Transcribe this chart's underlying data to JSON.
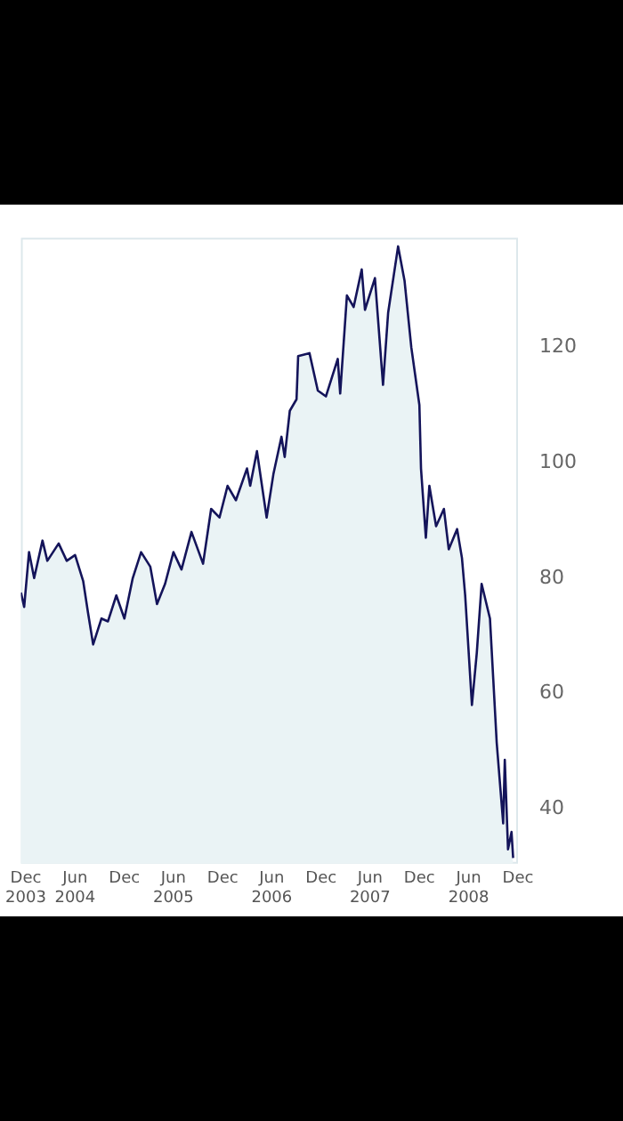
{
  "chart_data": {
    "type": "area",
    "x": [
      "2003-11-13",
      "2003-11-25",
      "2003-12-13",
      "2004-01-01",
      "2004-02-01",
      "2004-02-19",
      "2004-04-01",
      "2004-05-01",
      "2004-06-01",
      "2004-07-01",
      "2004-07-19",
      "2004-08-07",
      "2004-09-07",
      "2004-10-01",
      "2004-11-01",
      "2004-12-01",
      "2005-01-01",
      "2005-02-01",
      "2005-03-07",
      "2005-04-01",
      "2005-05-01",
      "2005-06-01",
      "2005-07-01",
      "2005-08-07",
      "2005-09-19",
      "2005-10-19",
      "2005-11-19",
      "2005-12-19",
      "2006-01-19",
      "2006-03-01",
      "2006-03-13",
      "2006-04-07",
      "2006-05-13",
      "2006-06-07",
      "2006-07-07",
      "2006-07-19",
      "2006-08-07",
      "2006-09-01",
      "2006-09-07",
      "2006-10-19",
      "2006-11-19",
      "2006-12-19",
      "2007-02-01",
      "2007-02-10",
      "2007-03-07",
      "2007-04-01",
      "2007-05-01",
      "2007-05-13",
      "2007-06-19",
      "2007-07-19",
      "2007-08-07",
      "2007-09-13",
      "2007-10-07",
      "2007-11-01",
      "2007-12-01",
      "2007-12-07",
      "2007-12-25",
      "2008-01-07",
      "2008-02-01",
      "2008-03-01",
      "2008-03-19",
      "2008-04-19",
      "2008-05-07",
      "2008-05-19",
      "2008-06-13",
      "2008-07-01",
      "2008-07-19",
      "2008-08-19",
      "2008-09-13",
      "2008-10-07",
      "2008-10-13",
      "2008-10-25",
      "2008-11-07",
      "2008-11-13"
    ],
    "series": [
      {
        "color": "#14145a",
        "values": [
          77.5,
          75,
          84.5,
          80,
          86.5,
          83,
          86,
          83,
          84,
          79.5,
          74,
          68.5,
          73,
          72.5,
          77,
          73,
          80,
          84.5,
          82,
          75.5,
          79,
          84.5,
          81.5,
          88,
          82.5,
          92,
          90.5,
          96,
          93.5,
          99,
          96,
          102,
          90.5,
          98,
          104.5,
          101,
          109,
          111,
          118.5,
          119,
          112.5,
          111.5,
          118,
          112,
          129,
          127,
          133.5,
          126.5,
          132,
          113.5,
          126,
          137.5,
          131.5,
          120,
          110,
          99,
          87,
          96,
          89,
          92,
          85,
          88.5,
          83.5,
          77,
          58,
          67,
          79,
          73,
          51.5,
          37.5,
          48.5,
          33,
          36,
          31.5
        ]
      }
    ],
    "xlim": [
      "2003-11-13",
      "2008-12-01"
    ],
    "xticks": [
      {
        "value": "2003-12-01",
        "label": "Dec 2003"
      },
      {
        "value": "2004-06-01",
        "label": "Jun 2004"
      },
      {
        "value": "2004-12-01",
        "label": "Dec"
      },
      {
        "value": "2005-06-01",
        "label": "Jun 2005"
      },
      {
        "value": "2005-12-01",
        "label": "Dec"
      },
      {
        "value": "2006-06-01",
        "label": "Jun 2006"
      },
      {
        "value": "2006-12-01",
        "label": "Dec"
      },
      {
        "value": "2007-06-01",
        "label": "Jun 2007"
      },
      {
        "value": "2007-12-01",
        "label": "Dec"
      },
      {
        "value": "2008-06-01",
        "label": "Jun 2008"
      },
      {
        "value": "2008-12-01",
        "label": "Dec"
      }
    ],
    "ylim": [
      30.5,
      139
    ],
    "yticks": [
      40,
      60,
      80,
      100,
      120
    ],
    "grid": false,
    "legend": false
  }
}
